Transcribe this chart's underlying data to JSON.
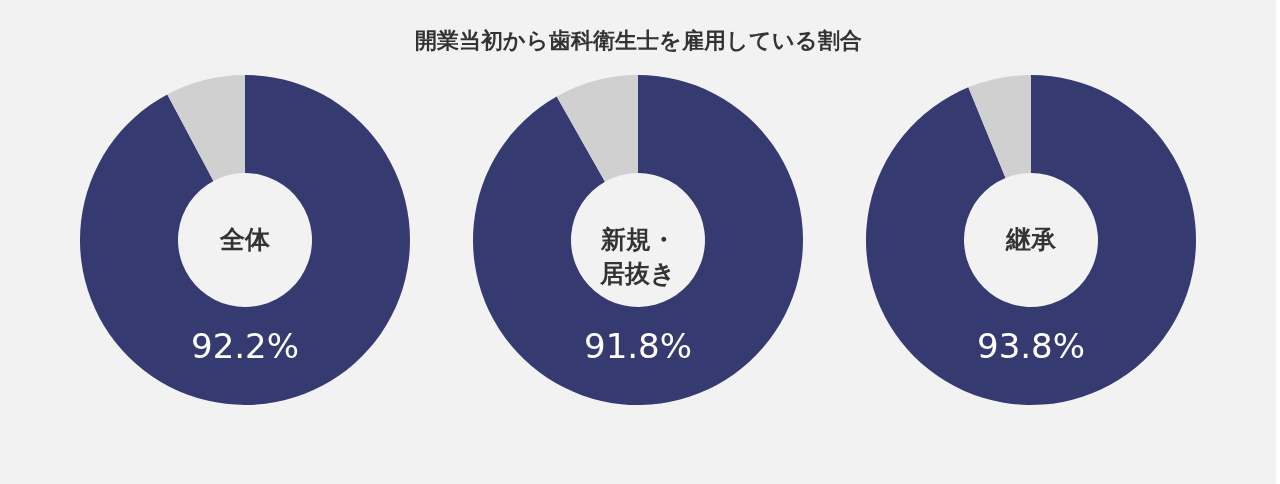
{
  "chart_data": [
    {
      "type": "other",
      "title": "開業当初から歯科衛生士を雇用している割合"
    },
    {
      "type": "donut",
      "title": "全体",
      "categories": [
        null,
        null
      ],
      "values": [
        92.2,
        7.8
      ],
      "colors": [
        "#353a70",
        "#d0d0d0"
      ],
      "value_labels": [
        "92.2%",
        null
      ]
    },
    {
      "type": "donut",
      "title": "新規・居抜き",
      "categories": [
        null,
        null
      ],
      "values": [
        91.8,
        8.2
      ],
      "colors": [
        "#353a70",
        "#d0d0d0"
      ],
      "value_labels": [
        "91.8%",
        null
      ]
    },
    {
      "type": "donut",
      "title": "継承",
      "categories": [
        null,
        null
      ],
      "values": [
        93.8,
        6.2
      ],
      "colors": [
        "#353a70",
        "#d0d0d0"
      ],
      "value_labels": [
        "93.8%",
        null
      ]
    }
  ]
}
